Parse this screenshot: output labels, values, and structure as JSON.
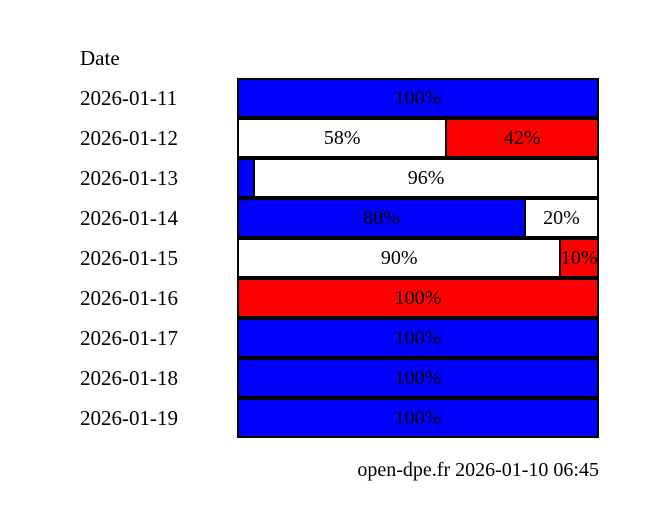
{
  "column_header": "Date",
  "footer_text": "open-dpe.fr 2026-01-10 06:45",
  "colors": {
    "blue": "#0000ff",
    "white": "#ffffff",
    "red": "#ff0000",
    "border": "#000000",
    "text": "#000000",
    "background": "#ffffff"
  },
  "chart_data": {
    "type": "bar",
    "orientation": "horizontal",
    "stacked": true,
    "title": "",
    "xlabel": "",
    "ylabel": "Date",
    "xlim": [
      0,
      100
    ],
    "grid": false,
    "legend": "none",
    "categories": [
      "2026-01-11",
      "2026-01-12",
      "2026-01-13",
      "2026-01-14",
      "2026-01-15",
      "2026-01-16",
      "2026-01-17",
      "2026-01-18",
      "2026-01-19"
    ],
    "rows": [
      {
        "date": "2026-01-11",
        "segments": [
          {
            "color": "blue",
            "value": 100,
            "label": "100%"
          }
        ]
      },
      {
        "date": "2026-01-12",
        "segments": [
          {
            "color": "white",
            "value": 58,
            "label": "58%"
          },
          {
            "color": "red",
            "value": 42,
            "label": "42%"
          }
        ]
      },
      {
        "date": "2026-01-13",
        "segments": [
          {
            "color": "blue",
            "value": 4,
            "label": ""
          },
          {
            "color": "white",
            "value": 96,
            "label": "96%"
          }
        ]
      },
      {
        "date": "2026-01-14",
        "segments": [
          {
            "color": "blue",
            "value": 80,
            "label": "80%"
          },
          {
            "color": "white",
            "value": 20,
            "label": "20%"
          }
        ]
      },
      {
        "date": "2026-01-15",
        "segments": [
          {
            "color": "white",
            "value": 90,
            "label": "90%"
          },
          {
            "color": "red",
            "value": 10,
            "label": "10%"
          }
        ]
      },
      {
        "date": "2026-01-16",
        "segments": [
          {
            "color": "red",
            "value": 100,
            "label": "100%"
          }
        ]
      },
      {
        "date": "2026-01-17",
        "segments": [
          {
            "color": "blue",
            "value": 100,
            "label": "100%"
          }
        ]
      },
      {
        "date": "2026-01-18",
        "segments": [
          {
            "color": "blue",
            "value": 100,
            "label": "100%"
          }
        ]
      },
      {
        "date": "2026-01-19",
        "segments": [
          {
            "color": "blue",
            "value": 100,
            "label": "100%"
          }
        ]
      }
    ]
  }
}
